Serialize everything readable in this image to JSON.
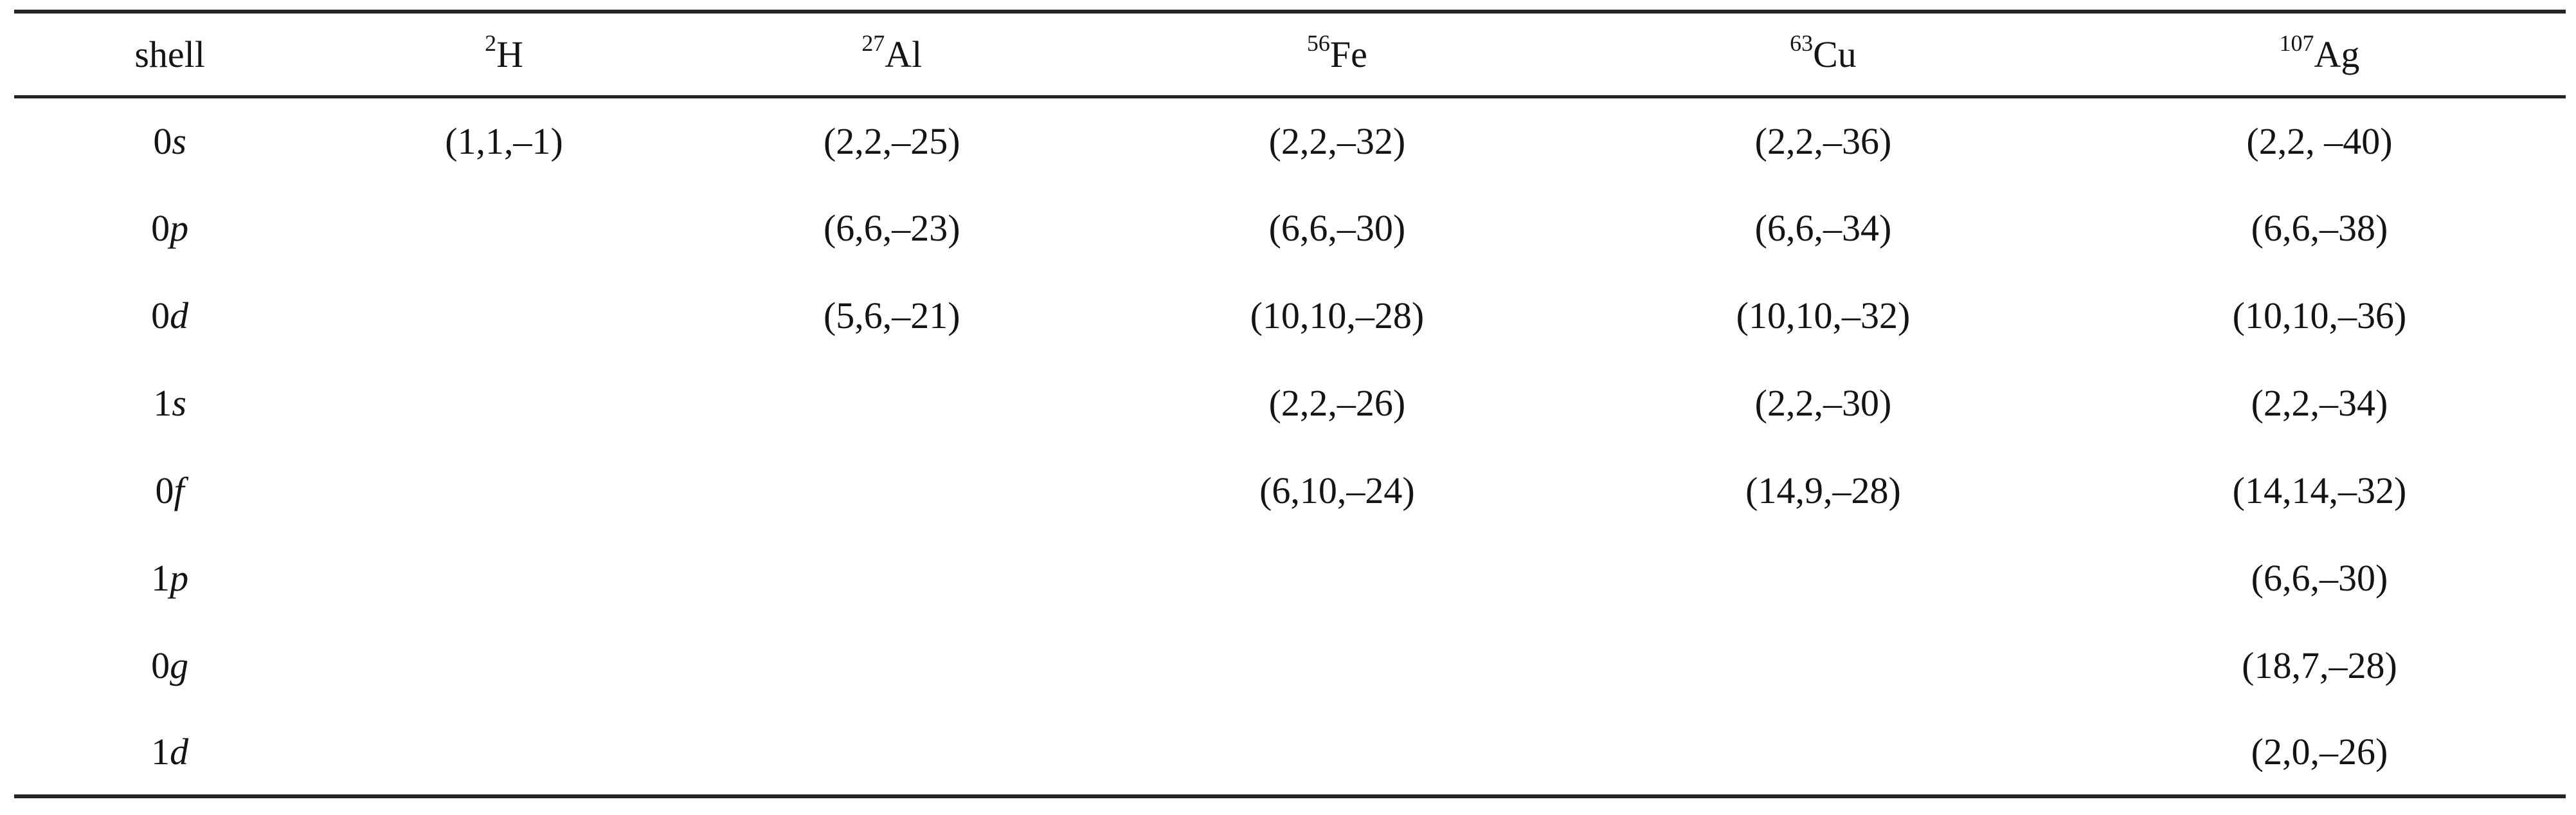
{
  "table": {
    "corner_label": "shell",
    "isotopes": [
      {
        "mass": "2",
        "symbol": "H"
      },
      {
        "mass": "27",
        "symbol": "Al"
      },
      {
        "mass": "56",
        "symbol": "Fe"
      },
      {
        "mass": "63",
        "symbol": "Cu"
      },
      {
        "mass": "107",
        "symbol": "Ag"
      }
    ],
    "rows": [
      {
        "shell_n": "0",
        "shell_l": "s",
        "values": [
          "(1,1,–1)",
          "(2,2,–25)",
          "(2,2,–32)",
          "(2,2,–36)",
          "(2,2, –40)"
        ]
      },
      {
        "shell_n": "0",
        "shell_l": "p",
        "values": [
          "",
          "(6,6,–23)",
          "(6,6,–30)",
          "(6,6,–34)",
          "(6,6,–38)"
        ]
      },
      {
        "shell_n": "0",
        "shell_l": "d",
        "values": [
          "",
          "(5,6,–21)",
          "(10,10,–28)",
          "(10,10,–32)",
          "(10,10,–36)"
        ]
      },
      {
        "shell_n": "1",
        "shell_l": "s",
        "values": [
          "",
          "",
          "(2,2,–26)",
          "(2,2,–30)",
          "(2,2,–34)"
        ]
      },
      {
        "shell_n": "0",
        "shell_l": "f",
        "values": [
          "",
          "",
          "(6,10,–24)",
          "(14,9,–28)",
          "(14,14,–32)"
        ]
      },
      {
        "shell_n": "1",
        "shell_l": "p",
        "values": [
          "",
          "",
          "",
          "",
          "(6,6,–30)"
        ]
      },
      {
        "shell_n": "0",
        "shell_l": "g",
        "values": [
          "",
          "",
          "",
          "",
          "(18,7,–28)"
        ]
      },
      {
        "shell_n": "1",
        "shell_l": "d",
        "values": [
          "",
          "",
          "",
          "",
          "(2,0,–26)"
        ]
      }
    ]
  }
}
